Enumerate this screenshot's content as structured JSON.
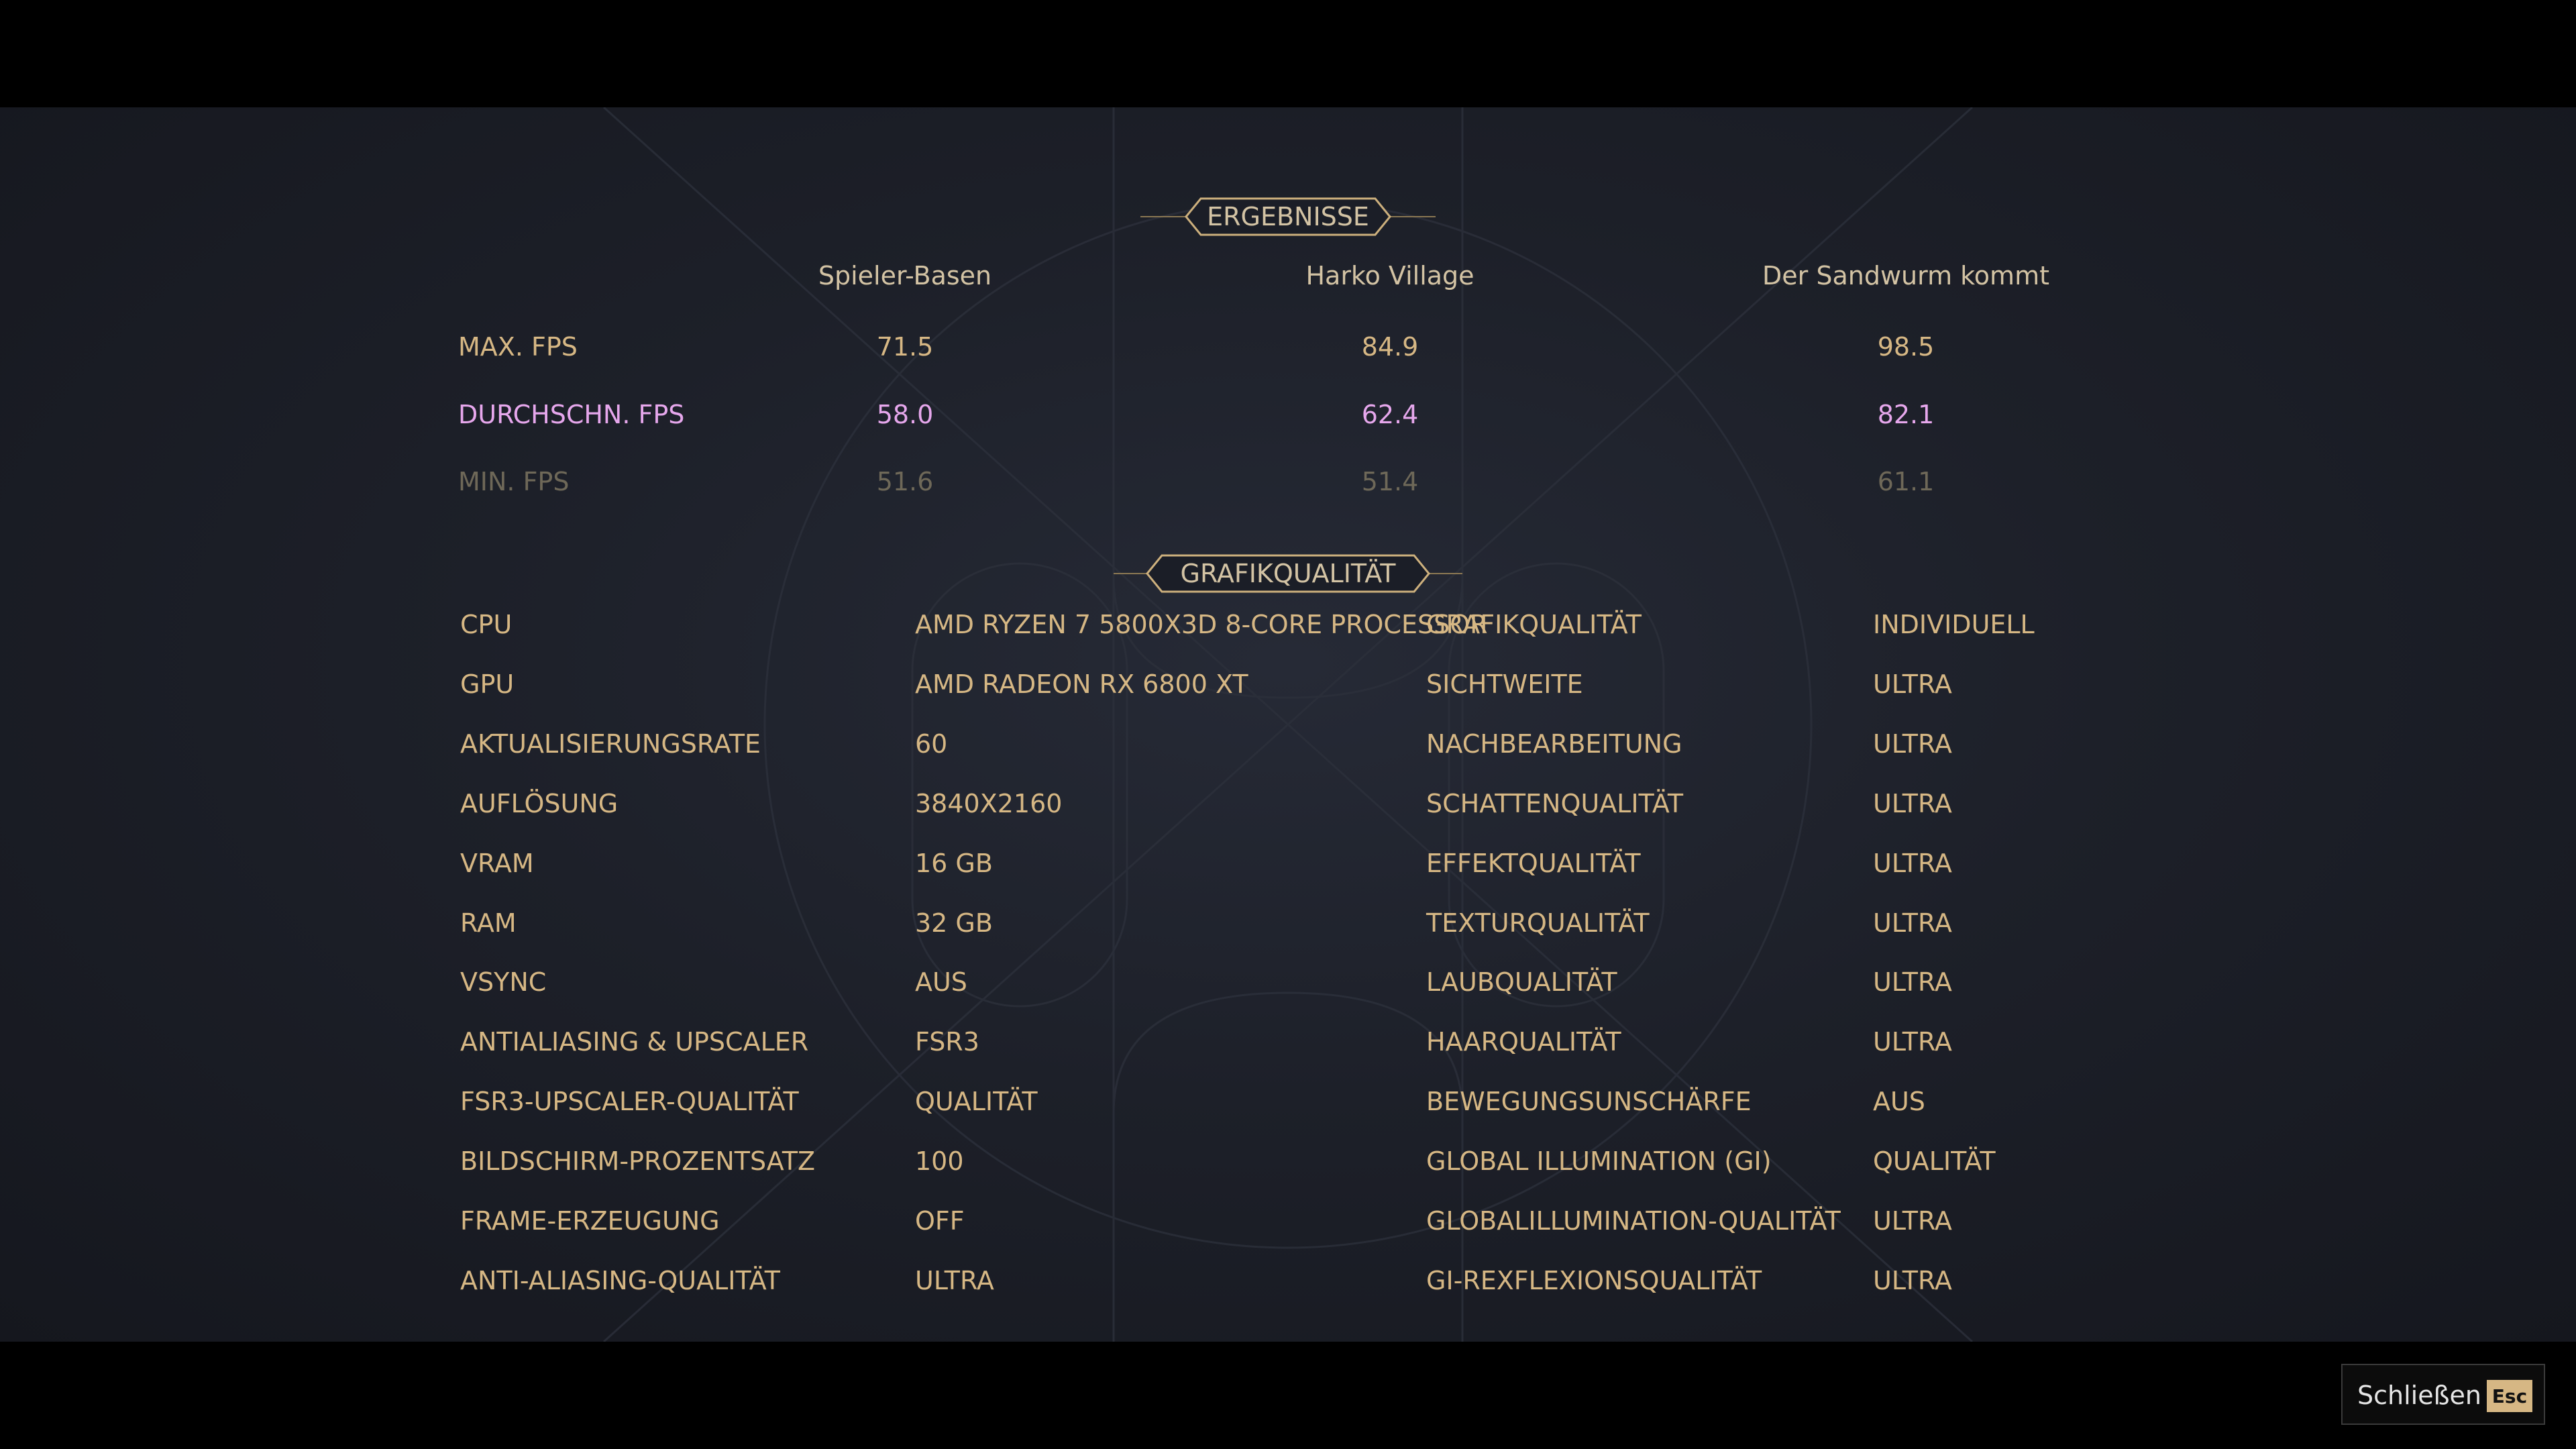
{
  "results": {
    "title": "ERGEBNISSE",
    "columns": [
      "Spieler-Basen",
      "Harko Village",
      "Der Sandwurm kommt"
    ],
    "rows": [
      {
        "label": "MAX. FPS",
        "values": [
          "71.5",
          "84.9",
          "98.5"
        ]
      },
      {
        "label": "DURCHSCHN. FPS",
        "values": [
          "58.0",
          "62.4",
          "82.1"
        ]
      },
      {
        "label": "MIN. FPS",
        "values": [
          "51.6",
          "51.4",
          "61.1"
        ]
      }
    ]
  },
  "settings": {
    "title": "GRAFIKQUALITÄT",
    "left": [
      [
        "CPU",
        "AMD RYZEN 7 5800X3D 8-CORE PROCESSOR"
      ],
      [
        "GPU",
        "AMD RADEON RX 6800 XT"
      ],
      [
        "AKTUALISIERUNGSRATE",
        "60"
      ],
      [
        "AUFLÖSUNG",
        "3840X2160"
      ],
      [
        "VRAM",
        "16 GB"
      ],
      [
        "RAM",
        "32 GB"
      ],
      [
        "VSYNC",
        "AUS"
      ],
      [
        "ANTIALIASING & UPSCALER",
        "FSR3"
      ],
      [
        "FSR3-UPSCALER-QUALITÄT",
        "QUALITÄT"
      ],
      [
        "BILDSCHIRM-PROZENTSATZ",
        "100"
      ],
      [
        "FRAME-ERZEUGUNG",
        "OFF"
      ],
      [
        "ANTI-ALIASING-QUALITÄT",
        "ULTRA"
      ]
    ],
    "right": [
      [
        "GRAFIKQUALITÄT",
        "INDIVIDUELL"
      ],
      [
        "SICHTWEITE",
        "ULTRA"
      ],
      [
        "NACHBEARBEITUNG",
        "ULTRA"
      ],
      [
        "SCHATTENQUALITÄT",
        "ULTRA"
      ],
      [
        "EFFEKTQUALITÄT",
        "ULTRA"
      ],
      [
        "TEXTURQUALITÄT",
        "ULTRA"
      ],
      [
        "LAUBQUALITÄT",
        "ULTRA"
      ],
      [
        "HAARQUALITÄT",
        "ULTRA"
      ],
      [
        "BEWEGUNGSUNSCHÄRFE",
        "AUS"
      ],
      [
        "GLOBAL ILLUMINATION (GI)",
        "QUALITÄT"
      ],
      [
        "GLOBALILLUMINATION-QUALITÄT",
        "ULTRA"
      ],
      [
        "GI-REXFLEXIONSQUALITÄT",
        "ULTRA"
      ]
    ]
  },
  "close": {
    "label": "Schließen",
    "key": "Esc"
  }
}
